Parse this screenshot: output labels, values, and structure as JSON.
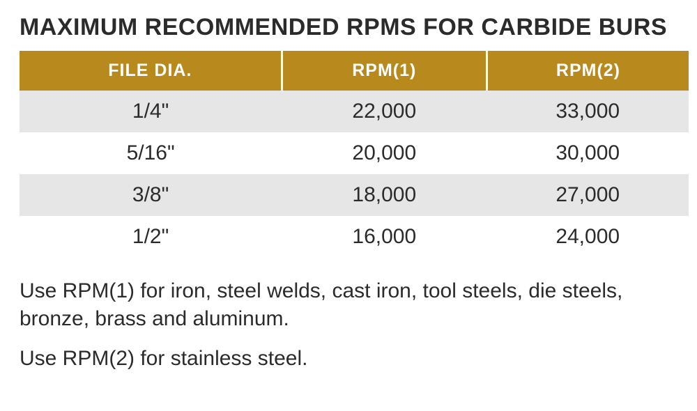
{
  "title": "MAXIMUM RECOMMENDED RPMS FOR CARBIDE BURS",
  "table": {
    "type": "table",
    "header_bg": "#b88a1e",
    "header_text_color": "#ffffff",
    "row_odd_bg": "#e6e6e6",
    "row_even_bg": "#ffffff",
    "text_color": "#2b2b2b",
    "title_fontsize": 34,
    "header_fontsize": 25,
    "cell_fontsize": 30,
    "columns": [
      "FILE DIA.",
      "RPM(1)",
      "RPM(2)"
    ],
    "rows": [
      [
        "1/4\"",
        "22,000",
        "33,000"
      ],
      [
        "5/16\"",
        "20,000",
        "30,000"
      ],
      [
        "3/8\"",
        "18,000",
        "27,000"
      ],
      [
        "1/2\"",
        "16,000",
        "24,000"
      ]
    ]
  },
  "notes": {
    "fontsize": 30,
    "line1": "Use RPM(1) for iron, steel welds, cast iron, tool steels, die steels, bronze, brass and aluminum.",
    "line2": "Use RPM(2) for stainless steel."
  }
}
